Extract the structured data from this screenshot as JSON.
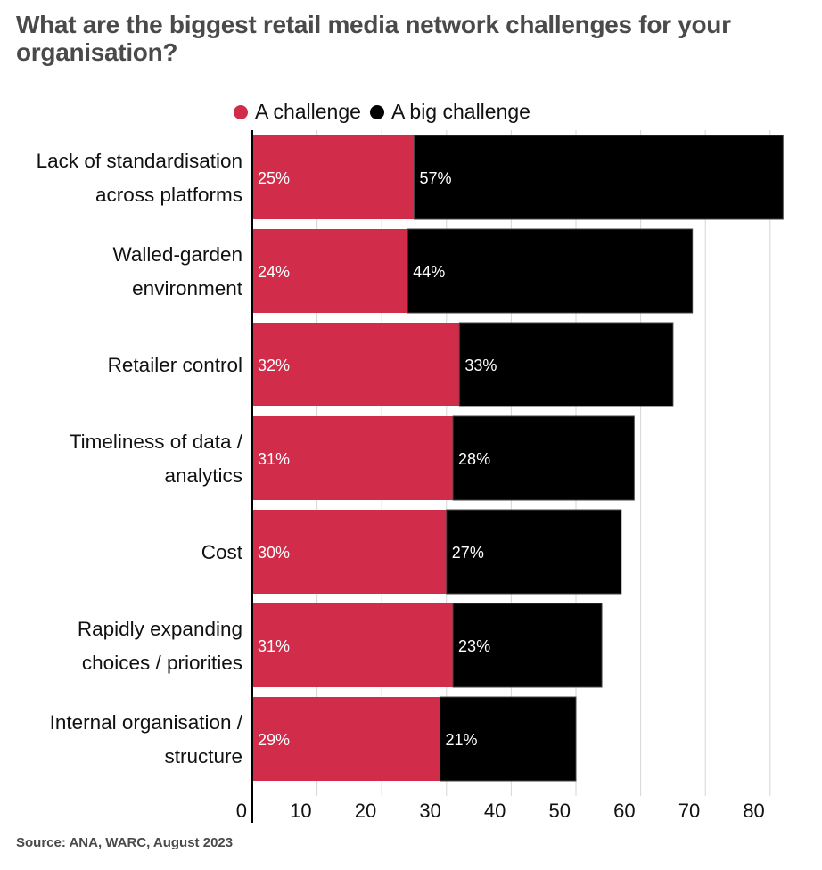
{
  "title": "What are the biggest retail media network challenges for your organisation?",
  "source": "Source: ANA, WARC, August 2023",
  "colors": {
    "challenge": "#d12d4b",
    "big_challenge": "#000000",
    "grid": "#d6d6d6",
    "axis": "#000000",
    "title": "#4a4a4a"
  },
  "chart_data": {
    "type": "bar",
    "orientation": "horizontal",
    "stacked": true,
    "title": "What are the biggest retail media network challenges for your organisation?",
    "xlabel": "",
    "ylabel": "",
    "xlim": [
      0,
      82
    ],
    "x_ticks": [
      0,
      10,
      20,
      30,
      40,
      50,
      60,
      70,
      80
    ],
    "x_tick_labels": [
      "0",
      "10",
      "20",
      "30",
      "40",
      "50",
      "60",
      "70",
      "80"
    ],
    "grid": true,
    "legend_position": "top",
    "categories": [
      [
        "Lack of standardisation",
        "across platforms"
      ],
      [
        "Walled-garden",
        "environment"
      ],
      [
        "Retailer control"
      ],
      [
        "Timeliness of data /",
        "analytics"
      ],
      [
        "Cost"
      ],
      [
        "Rapidly expanding",
        "choices / priorities"
      ],
      [
        "Internal organisation /",
        "structure"
      ]
    ],
    "series": [
      {
        "name": "A challenge",
        "color": "#d12d4b",
        "values": [
          25,
          24,
          32,
          31,
          30,
          31,
          29
        ],
        "labels": [
          "25%",
          "24%",
          "32%",
          "31%",
          "30%",
          "31%",
          "29%"
        ]
      },
      {
        "name": "A big challenge",
        "color": "#000000",
        "values": [
          57,
          44,
          33,
          28,
          27,
          23,
          21
        ],
        "labels": [
          "57%",
          "44%",
          "33%",
          "28%",
          "27%",
          "23%",
          "21%"
        ]
      }
    ]
  }
}
